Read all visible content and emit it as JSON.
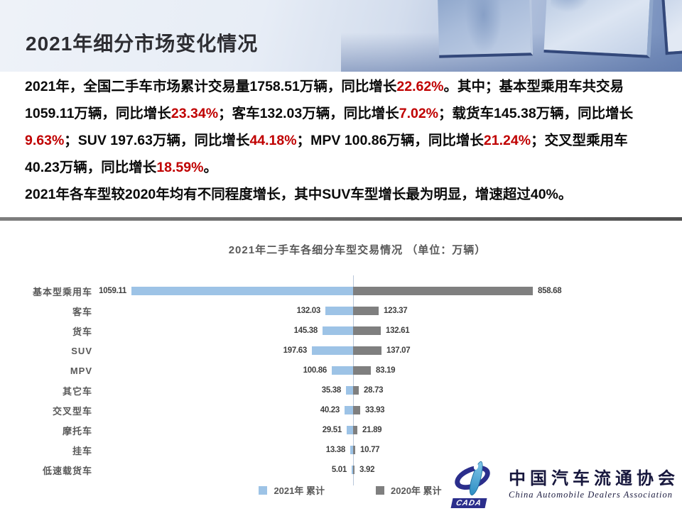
{
  "header": {
    "title": "2021年细分市场变化情况"
  },
  "summary": {
    "paragraph1_segments": [
      {
        "text": "2021年，全国二手车市场累计交易量1758.51万辆，同比增长",
        "emphasis": false
      },
      {
        "text": "22.62%",
        "emphasis": true
      },
      {
        "text": "。其中；基本型乘用车共交易1059.11万辆，同比增长",
        "emphasis": false
      },
      {
        "text": "23.34%",
        "emphasis": true
      },
      {
        "text": "；客车132.03万辆，同比增长",
        "emphasis": false
      },
      {
        "text": "7.02%",
        "emphasis": true
      },
      {
        "text": "；载货车145.38万辆，同比增长",
        "emphasis": false
      },
      {
        "text": "9.63%",
        "emphasis": true
      },
      {
        "text": "；SUV 197.63万辆，同比增长",
        "emphasis": false
      },
      {
        "text": "44.18%",
        "emphasis": true
      },
      {
        "text": "；MPV 100.86万辆，同比增长",
        "emphasis": false
      },
      {
        "text": "21.24%",
        "emphasis": true
      },
      {
        "text": "；交叉型乘用车40.23万辆，同比增长",
        "emphasis": false
      },
      {
        "text": "18.59%",
        "emphasis": true
      },
      {
        "text": "。",
        "emphasis": false
      }
    ],
    "paragraph2": "2021年各车型较2020年均有不同程度增长，其中SUV车型增长最为明显，增速超过40%。"
  },
  "chart_data": {
    "type": "bar",
    "subtype": "tornado-horizontal",
    "title": "2021年二手车各细分车型交易情况 （单位：万辆）",
    "unit": "万辆",
    "categories": [
      "基本型乘用车",
      "客车",
      "货车",
      "SUV",
      "MPV",
      "其它车",
      "交叉型车",
      "摩托车",
      "挂车",
      "低速载货车"
    ],
    "series": [
      {
        "name": "2021年 累计",
        "side": "left",
        "color": "#9DC3E6",
        "values": [
          1059.11,
          132.03,
          145.38,
          197.63,
          100.86,
          35.38,
          40.23,
          29.51,
          13.38,
          5.01
        ]
      },
      {
        "name": "2020年 累计",
        "side": "right",
        "color": "#7F7F7F",
        "values": [
          858.68,
          123.37,
          132.61,
          137.07,
          83.19,
          28.73,
          33.93,
          21.89,
          10.77,
          3.92
        ]
      }
    ],
    "value_labels": true,
    "grid": false,
    "legend_position": "bottom",
    "xlim_left_max": 1100,
    "xlim_right_max": 900
  },
  "footer_logo": {
    "acronym": "CADA",
    "name_cn": "中国汽车流通协会",
    "name_en": "China Automobile Dealers Association"
  },
  "colors": {
    "emphasis_red": "#C00000",
    "bar_2021": "#9DC3E6",
    "bar_2020": "#7F7F7F",
    "chart_text_gray": "#595959",
    "logo_navy": "#2B2E8C",
    "divider_gray": "#666666"
  }
}
